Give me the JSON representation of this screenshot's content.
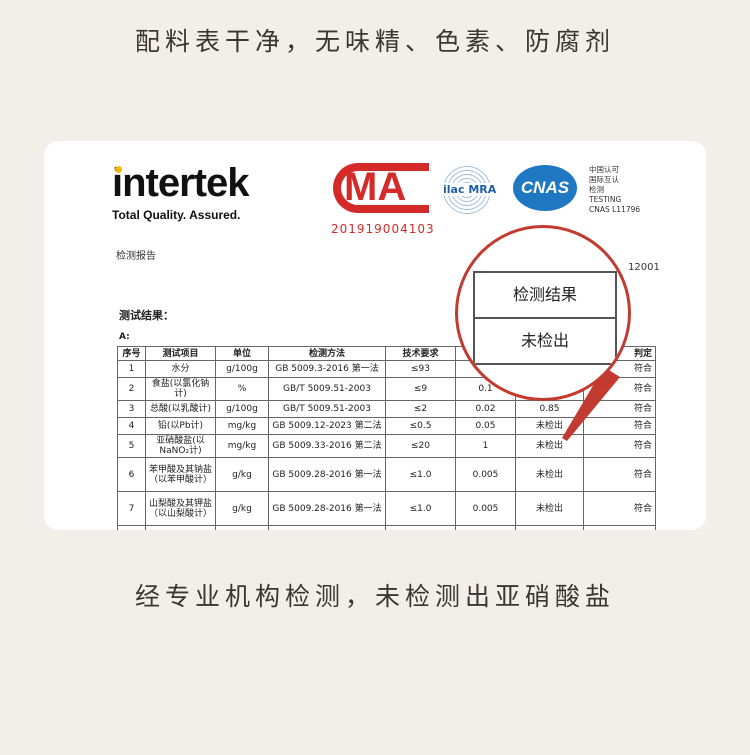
{
  "captions": {
    "top": "配料表干净，无味精、色素、防腐剂",
    "bottom": "经专业机构检测，未检测出亚硝酸盐"
  },
  "report": {
    "logo": "intertek",
    "tagline": "Total Quality. Assured.",
    "cma": {
      "text": "MA",
      "number": "201919004103"
    },
    "ilac": "ilac MRA",
    "cnas": "CNAS",
    "cnas_info": [
      "中国认可",
      "国际互认",
      "检测",
      "TESTING",
      "CNAS L11796"
    ],
    "label": "检测报告",
    "number_fragment": "12001",
    "results_title": "测试结果：",
    "sub": "A:",
    "headers": [
      "序号",
      "测试项目",
      "单位",
      "检测方法",
      "技术要求",
      "",
      "",
      "判定"
    ],
    "rows": [
      [
        "1",
        "水分",
        "g/100g",
        "GB 5009.3-2016 第一法",
        "≤93",
        "",
        "",
        "符合"
      ],
      [
        "2",
        "食盐(以氯化钠计)",
        "%",
        "GB/T 5009.51-2003",
        "≤9",
        "0.1",
        "",
        "符合"
      ],
      [
        "3",
        "总酸(以乳酸计)",
        "g/100g",
        "GB/T 5009.51-2003",
        "≤2",
        "0.02",
        "0.85",
        "符合"
      ],
      [
        "4",
        "铅(以Pb计)",
        "mg/kg",
        "GB 5009.12-2023 第二法",
        "≤0.5",
        "0.05",
        "未检出",
        "符合"
      ],
      [
        "5",
        "亚硝酸盐(以NaNO₂计)",
        "mg/kg",
        "GB 5009.33-2016 第二法",
        "≤20",
        "1",
        "未检出",
        "符合"
      ],
      [
        "6",
        "苯甲酸及其钠盐（以苯甲酸计）",
        "g/kg",
        "GB 5009.28-2016 第一法",
        "≤1.0",
        "0.005",
        "未检出",
        "符合"
      ],
      [
        "7",
        "山梨酸及其钾盐（以山梨酸计）",
        "g/kg",
        "GB 5009.28-2016 第一法",
        "≤1.0",
        "0.005",
        "未检出",
        "符合"
      ]
    ],
    "magnifier": {
      "header": "检测结果",
      "value": "未检出"
    }
  },
  "colors": {
    "background": "#f2eee8",
    "accent_red": "#c23a30",
    "cnas_blue": "#1f78c1"
  }
}
